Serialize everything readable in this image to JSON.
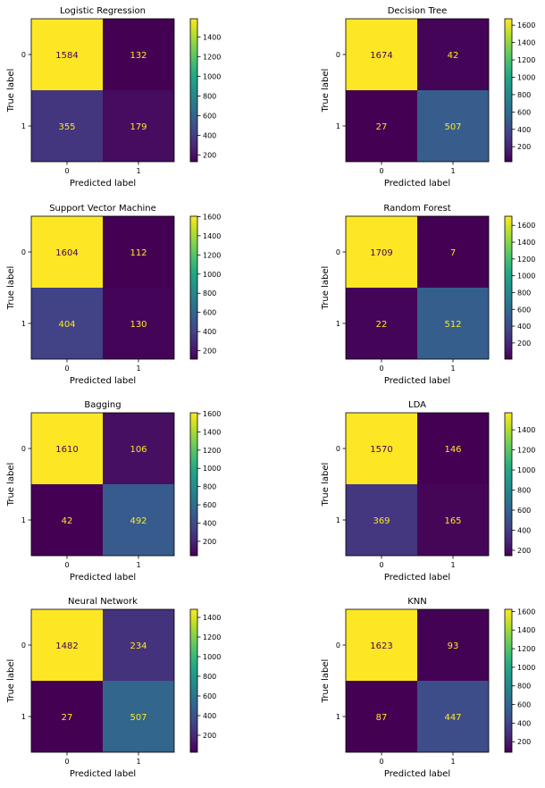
{
  "chart_data": [
    {
      "type": "heatmap",
      "title": "Logistic Regression",
      "xlabel": "Predicted label",
      "ylabel": "True label",
      "x_ticks": [
        "0",
        "1"
      ],
      "y_ticks": [
        "0",
        "1"
      ],
      "matrix": [
        [
          1584,
          132
        ],
        [
          355,
          179
        ]
      ],
      "colorbar": {
        "ticks": [
          "200",
          "400",
          "600",
          "800",
          "1000",
          "1200",
          "1400"
        ]
      }
    },
    {
      "type": "heatmap",
      "title": "Decision Tree",
      "xlabel": "Predicted label",
      "ylabel": "True label",
      "x_ticks": [
        "0",
        "1"
      ],
      "y_ticks": [
        "0",
        "1"
      ],
      "matrix": [
        [
          1674,
          42
        ],
        [
          27,
          507
        ]
      ],
      "colorbar": {
        "ticks": [
          "200",
          "400",
          "600",
          "800",
          "1000",
          "1200",
          "1400",
          "1600"
        ]
      }
    },
    {
      "type": "heatmap",
      "title": "Support Vector Machine",
      "xlabel": "Predicted label",
      "ylabel": "True label",
      "x_ticks": [
        "0",
        "1"
      ],
      "y_ticks": [
        "0",
        "1"
      ],
      "matrix": [
        [
          1604,
          112
        ],
        [
          404,
          130
        ]
      ],
      "colorbar": {
        "ticks": [
          "200",
          "400",
          "600",
          "800",
          "1000",
          "1200",
          "1400",
          "1600"
        ]
      }
    },
    {
      "type": "heatmap",
      "title": "Random Forest",
      "xlabel": "Predicted label",
      "ylabel": "True label",
      "x_ticks": [
        "0",
        "1"
      ],
      "y_ticks": [
        "0",
        "1"
      ],
      "matrix": [
        [
          1709,
          7
        ],
        [
          22,
          512
        ]
      ],
      "colorbar": {
        "ticks": [
          "200",
          "400",
          "600",
          "800",
          "1000",
          "1200",
          "1400",
          "1600"
        ]
      }
    },
    {
      "type": "heatmap",
      "title": "Bagging",
      "xlabel": "Predicted label",
      "ylabel": "True label",
      "x_ticks": [
        "0",
        "1"
      ],
      "y_ticks": [
        "0",
        "1"
      ],
      "matrix": [
        [
          1610,
          106
        ],
        [
          42,
          492
        ]
      ],
      "colorbar": {
        "ticks": [
          "200",
          "400",
          "600",
          "800",
          "1000",
          "1200",
          "1400",
          "1600"
        ]
      }
    },
    {
      "type": "heatmap",
      "title": "LDA",
      "xlabel": "Predicted label",
      "ylabel": "True label",
      "x_ticks": [
        "0",
        "1"
      ],
      "y_ticks": [
        "0",
        "1"
      ],
      "matrix": [
        [
          1570,
          146
        ],
        [
          369,
          165
        ]
      ],
      "colorbar": {
        "ticks": [
          "200",
          "400",
          "600",
          "800",
          "1000",
          "1200",
          "1400"
        ]
      }
    },
    {
      "type": "heatmap",
      "title": "Neural Network",
      "xlabel": "Predicted label",
      "ylabel": "True label",
      "x_ticks": [
        "0",
        "1"
      ],
      "y_ticks": [
        "0",
        "1"
      ],
      "matrix": [
        [
          1482,
          234
        ],
        [
          27,
          507
        ]
      ],
      "colorbar": {
        "ticks": [
          "200",
          "400",
          "600",
          "800",
          "1000",
          "1200",
          "1400"
        ]
      }
    },
    {
      "type": "heatmap",
      "title": "KNN",
      "xlabel": "Predicted label",
      "ylabel": "True label",
      "x_ticks": [
        "0",
        "1"
      ],
      "y_ticks": [
        "0",
        "1"
      ],
      "matrix": [
        [
          1623,
          93
        ],
        [
          87,
          447
        ]
      ],
      "colorbar": {
        "ticks": [
          "200",
          "400",
          "600",
          "800",
          "1000",
          "1200",
          "1400",
          "1600"
        ]
      }
    }
  ],
  "colormap": "viridis",
  "colors": {
    "low_text": "#fde725",
    "high_text": "#440154"
  }
}
